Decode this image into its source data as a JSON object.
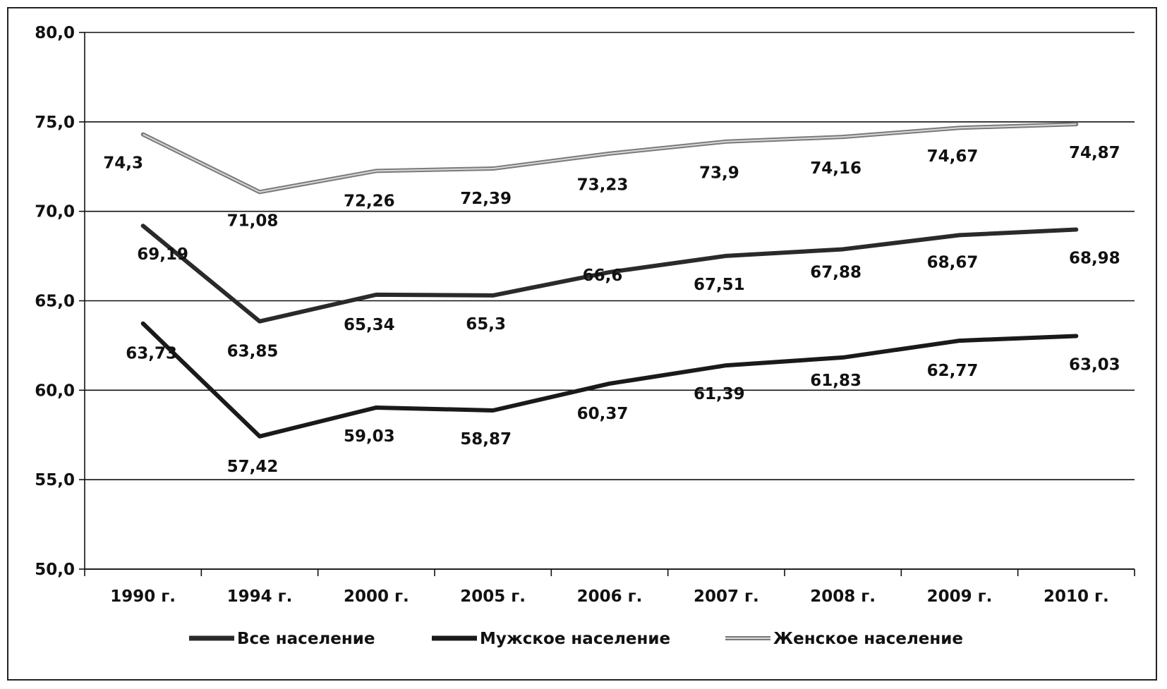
{
  "chart_data": {
    "type": "line",
    "categories": [
      "1990 г.",
      "1994 г.",
      "2000 г.",
      "2005 г.",
      "2006 г.",
      "2007 г.",
      "2008 г.",
      "2009 г.",
      "2010 г."
    ],
    "series": [
      {
        "name": "Все население",
        "values": [
          69.19,
          63.85,
          65.34,
          65.3,
          66.6,
          67.51,
          67.88,
          68.67,
          68.98
        ],
        "labels": [
          "69,19",
          "63,85",
          "65,34",
          "65,3",
          "66,6",
          "67,51",
          "67,88",
          "68,67",
          "68,98"
        ],
        "color": "#2a2a2a",
        "style": "solid"
      },
      {
        "name": "Мужское население",
        "values": [
          63.73,
          57.42,
          59.03,
          58.87,
          60.37,
          61.39,
          61.83,
          62.77,
          63.03
        ],
        "labels": [
          "63,73",
          "57,42",
          "59,03",
          "58,87",
          "60,37",
          "61,39",
          "61,83",
          "62,77",
          "63,03"
        ],
        "color": "#1a1a1a",
        "style": "solid"
      },
      {
        "name": "Женское население",
        "values": [
          74.3,
          71.08,
          72.26,
          72.39,
          73.23,
          73.9,
          74.16,
          74.67,
          74.87
        ],
        "labels": [
          "74,3",
          "71,08",
          "72,26",
          "72,39",
          "73,23",
          "73,9",
          "74,16",
          "74,67",
          "74,87"
        ],
        "color": "#8a8a8a",
        "style": "double"
      }
    ],
    "y_ticks": [
      "50,0",
      "55,0",
      "60,0",
      "65,0",
      "70,0",
      "75,0",
      "80,0"
    ],
    "ylim": [
      50,
      80
    ],
    "grid": true,
    "legend_position": "bottom"
  }
}
